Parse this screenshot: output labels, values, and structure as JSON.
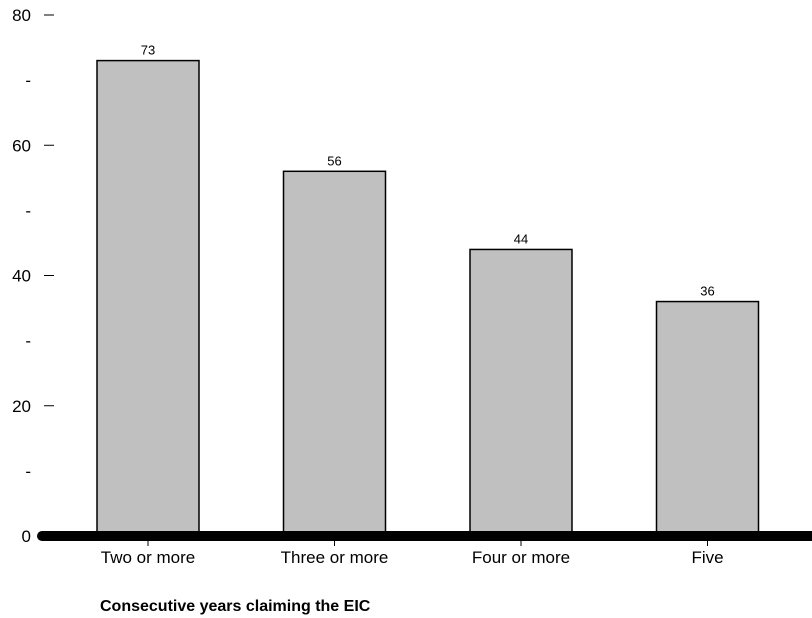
{
  "chart_data": {
    "type": "bar",
    "categories": [
      "Two or more",
      "Three or more",
      "Four or more",
      "Five"
    ],
    "values": [
      73,
      56,
      44,
      36
    ],
    "data_labels": [
      "73",
      "56",
      "44",
      "36"
    ],
    "title": "",
    "xlabel": "Consecutive years claiming the EIC",
    "ylabel": "",
    "ylim": [
      0,
      80
    ],
    "yticks": [
      0,
      20,
      40,
      60,
      80
    ],
    "ytick_labels": [
      "0",
      "20",
      "40",
      "60",
      "80"
    ],
    "minor_yticks": [
      10,
      30,
      50,
      70
    ],
    "minor_ytick_labels": [
      "-",
      "-",
      "-",
      "-"
    ],
    "grid": false,
    "legend": "none",
    "bar_color": "#c0c0c0",
    "bar_edge_color": "#000000"
  }
}
